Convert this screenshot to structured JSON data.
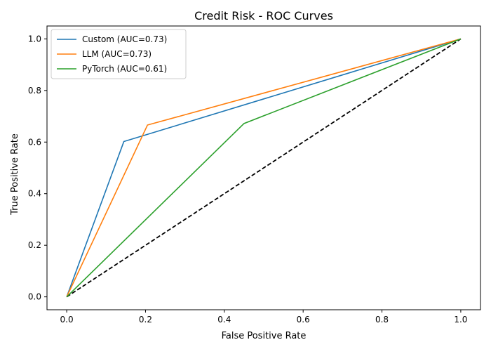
{
  "chart_data": {
    "type": "line",
    "title": "Credit Risk - ROC Curves",
    "xlabel": "False Positive Rate",
    "ylabel": "True Positive Rate",
    "xlim": [
      -0.05,
      1.05
    ],
    "ylim": [
      -0.05,
      1.05
    ],
    "xticks": [
      0.0,
      0.2,
      0.4,
      0.6,
      0.8,
      1.0
    ],
    "yticks": [
      0.0,
      0.2,
      0.4,
      0.6,
      0.8,
      1.0
    ],
    "xtick_labels": [
      "0.0",
      "0.2",
      "0.4",
      "0.6",
      "0.8",
      "1.0"
    ],
    "ytick_labels": [
      "0.0",
      "0.2",
      "0.4",
      "0.6",
      "0.8",
      "1.0"
    ],
    "grid": false,
    "legend_position": "top-left",
    "series": [
      {
        "name": "Custom (AUC=0.73)",
        "color": "#1f77b4",
        "x": [
          0.0,
          0.145,
          1.0
        ],
        "y": [
          0.0,
          0.602,
          1.0
        ]
      },
      {
        "name": "LLM (AUC=0.73)",
        "color": "#ff7f0e",
        "x": [
          0.0,
          0.205,
          1.0
        ],
        "y": [
          0.0,
          0.666,
          1.0
        ]
      },
      {
        "name": "PyTorch (AUC=0.61)",
        "color": "#2ca02c",
        "x": [
          0.0,
          0.45,
          1.0
        ],
        "y": [
          0.0,
          0.672,
          1.0
        ]
      }
    ],
    "reference_line": {
      "color": "#000000",
      "style": "dashed",
      "x": [
        0.0,
        1.0
      ],
      "y": [
        0.0,
        1.0
      ]
    }
  }
}
